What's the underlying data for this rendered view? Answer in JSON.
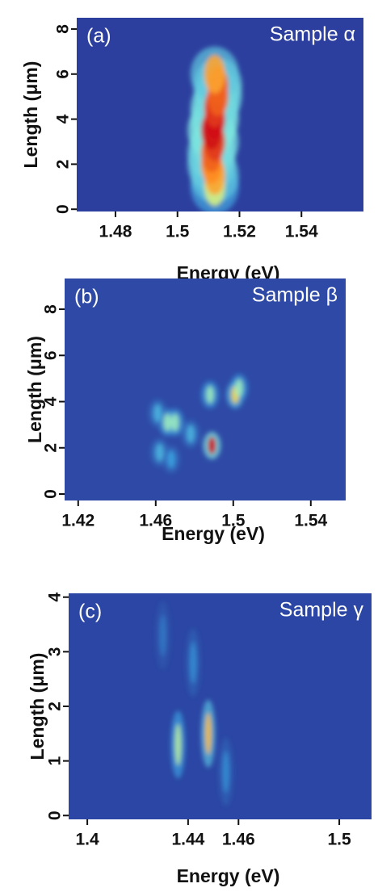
{
  "chart_data": [
    {
      "type": "heatmap",
      "title": "(a)",
      "annotation": "Sample α",
      "xlabel": "Energy (eV)",
      "ylabel": "Length  (μm)",
      "xlim": [
        1.4675,
        1.56
      ],
      "ylim": [
        -0.1,
        8.5
      ],
      "xticks": [
        1.48,
        1.5,
        1.52,
        1.54
      ],
      "yticks": [
        0,
        2,
        4,
        6,
        8
      ],
      "spots": {
        "x": [
          1.512,
          1.512,
          1.511,
          1.511,
          1.512,
          1.511,
          1.512,
          1.512,
          1.513,
          1.513,
          1.512
        ],
        "y": [
          1,
          1.5,
          2,
          2.5,
          3,
          3.5,
          4,
          4.5,
          5,
          5.5,
          6
        ],
        "intensity": [
          0.6,
          0.8,
          0.85,
          0.9,
          0.95,
          1,
          1,
          0.95,
          0.9,
          0.9,
          0.8
        ]
      }
    },
    {
      "type": "heatmap",
      "title": "(b)",
      "annotation": "Sample β",
      "xlabel": "Energy (eV)",
      "ylabel": "Length  (μm)",
      "xlim": [
        1.413,
        1.558
      ],
      "ylim": [
        -0.28,
        9.33
      ],
      "xticks": [
        1.42,
        1.46,
        1.5,
        1.54
      ],
      "yticks": [
        0,
        2,
        4,
        6,
        8
      ],
      "spots": {
        "x": [
          1.466,
          1.47,
          1.462,
          1.468,
          1.478,
          1.489,
          1.488,
          1.501,
          1.503,
          1.461
        ],
        "y": [
          3.1,
          3.1,
          1.8,
          1.5,
          2.6,
          2.1,
          4.3,
          4.3,
          4.6,
          3.5
        ],
        "intensity": [
          0.5,
          0.5,
          0.3,
          0.25,
          0.3,
          1,
          0.5,
          0.7,
          0.5,
          0.3
        ]
      }
    },
    {
      "type": "heatmap",
      "title": "(c)",
      "annotation": "Sample γ",
      "xlabel": "Energy (eV)",
      "ylabel": "Length  (μm)",
      "xlim": [
        1.3926,
        1.5128
      ],
      "ylim": [
        -0.07,
        4.07
      ],
      "xticks": [
        1.4,
        1.44,
        1.46,
        1.5
      ],
      "yticks": [
        0,
        1,
        2,
        3,
        4
      ],
      "spots": {
        "x": [
          1.436,
          1.448,
          1.442,
          1.455,
          1.43
        ],
        "y": [
          1.3,
          1.5,
          2.8,
          0.8,
          3.3
        ],
        "intensity": [
          0.55,
          0.75,
          0.2,
          0.2,
          0.15
        ]
      }
    }
  ]
}
